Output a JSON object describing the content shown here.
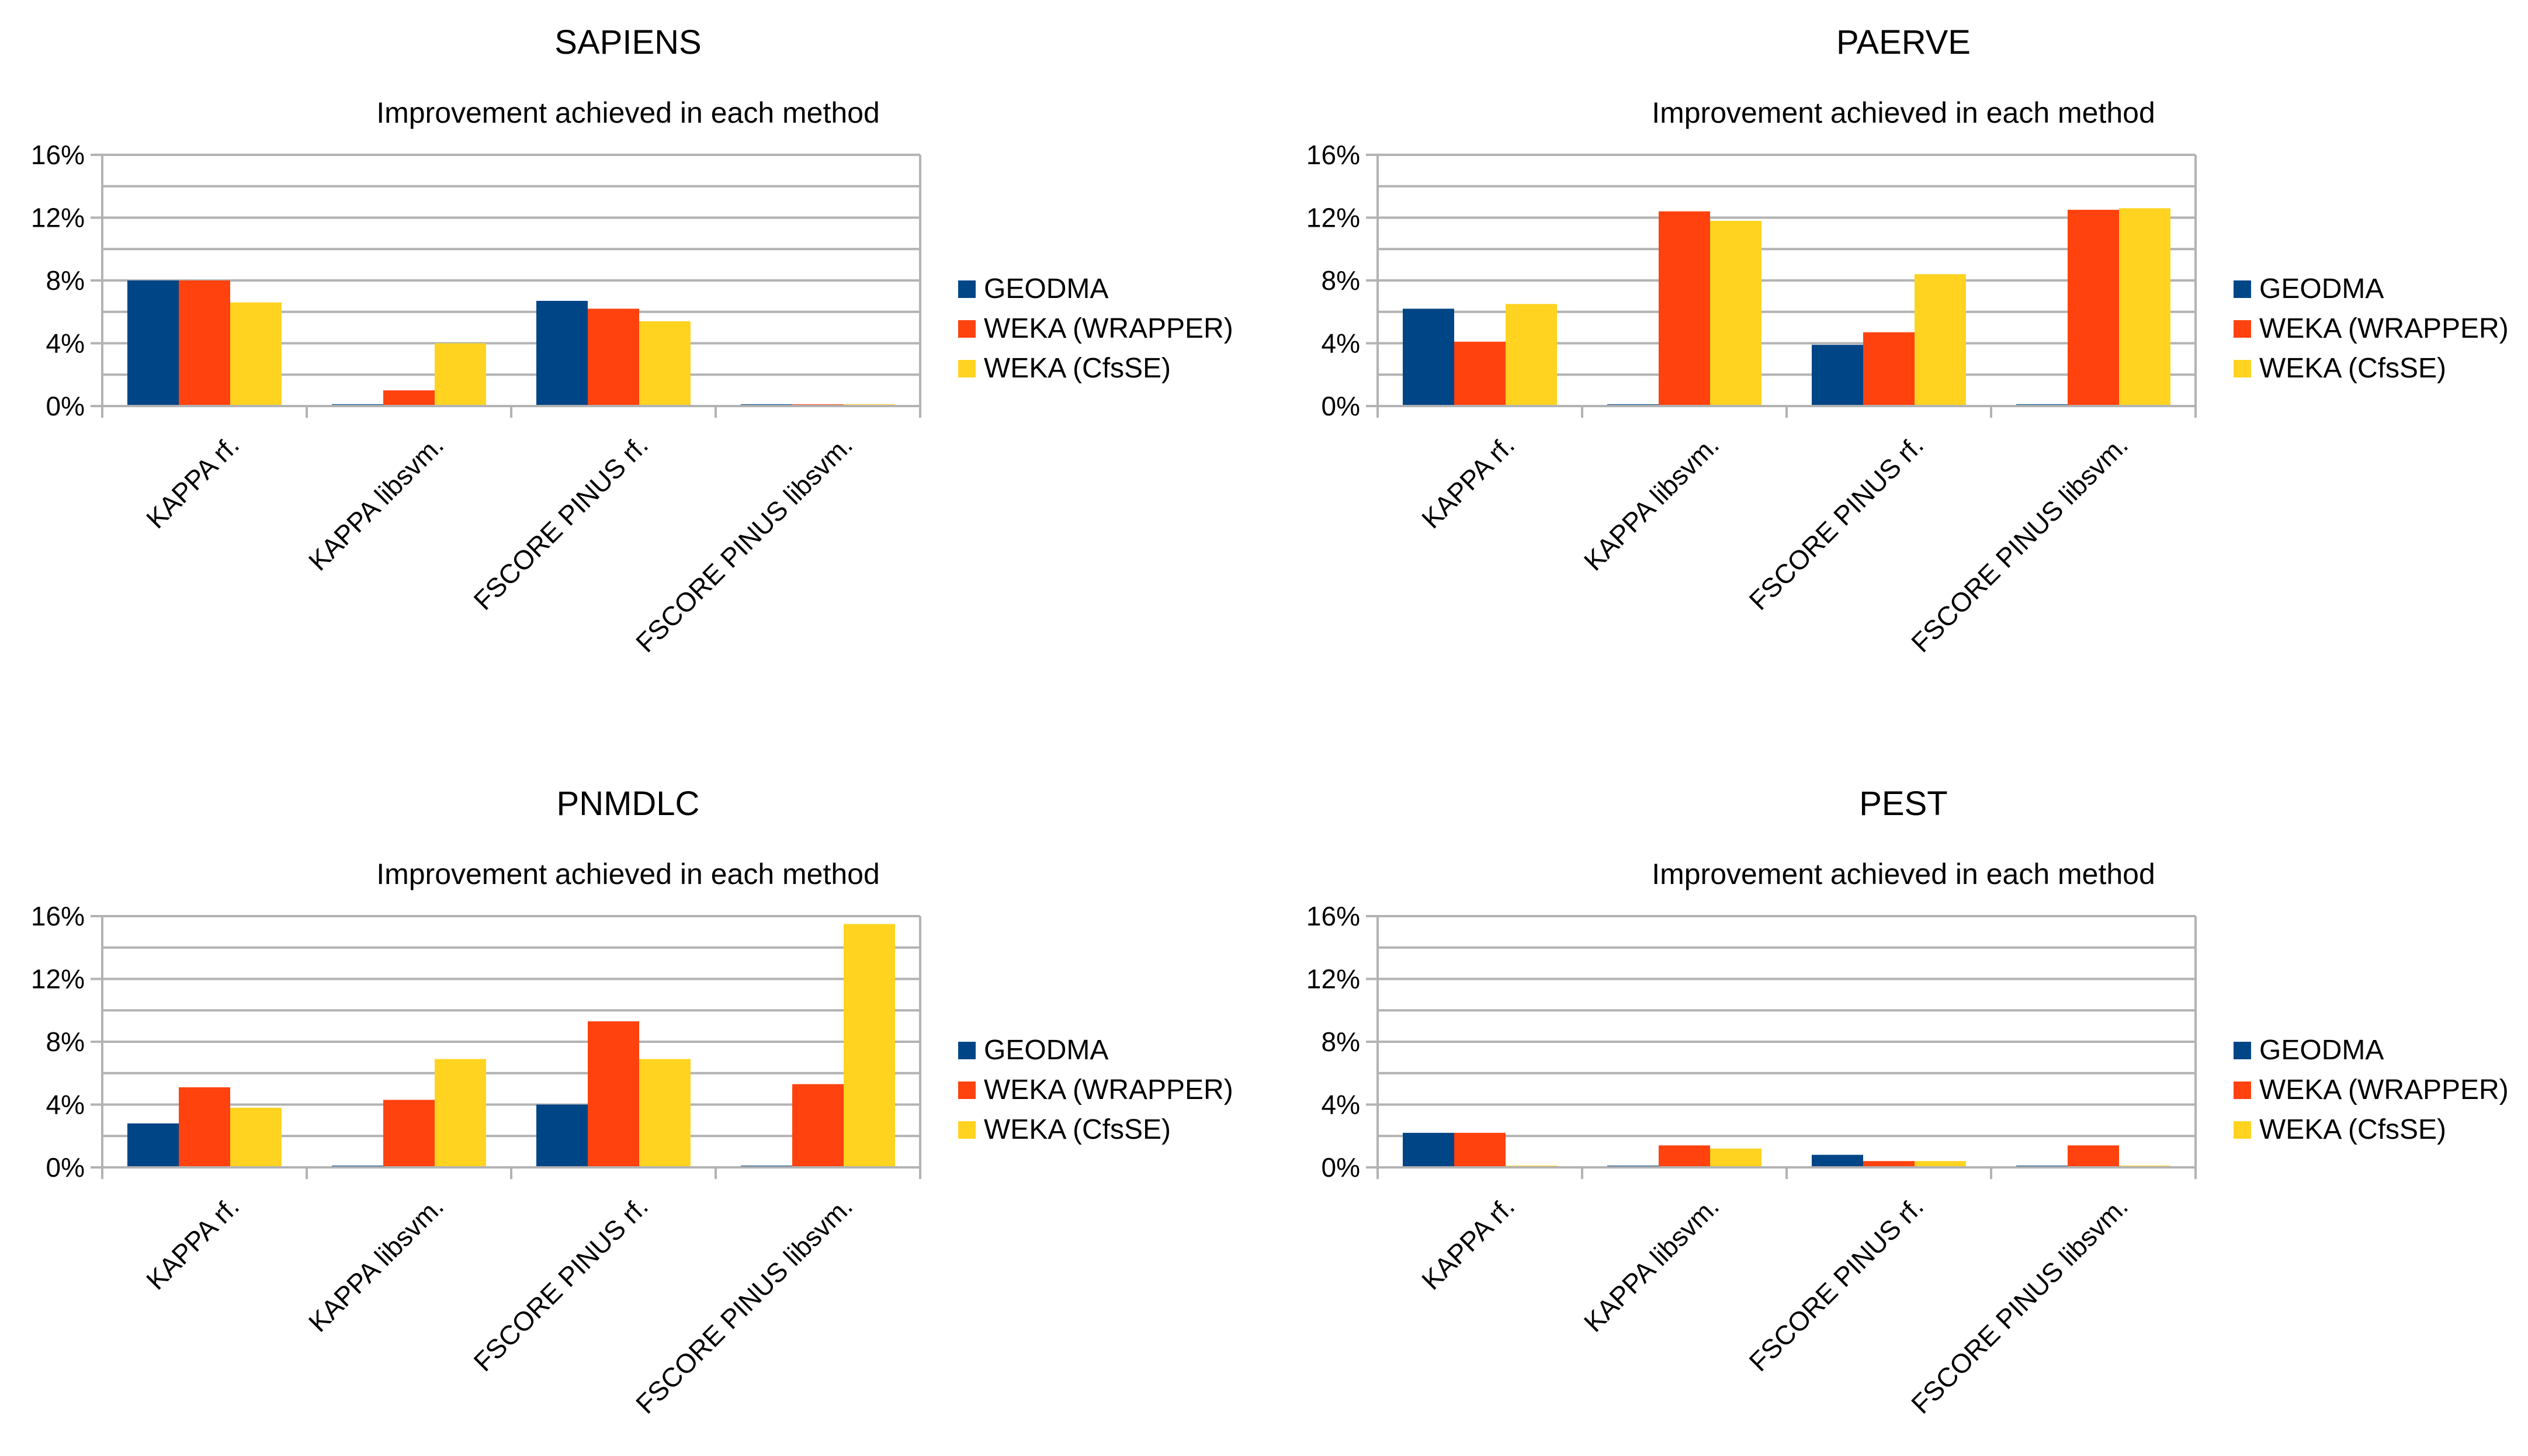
{
  "colors": {
    "GEODMA": "#004586",
    "WEKA (WRAPPER)": "#ff420e",
    "WEKA (CfsSE)": "#ffd320",
    "grid": "#b3b3b3"
  },
  "chart_data": [
    {
      "type": "bar",
      "title": "SAPIENS",
      "subtitle": "Improvement achieved in each method",
      "categories": [
        "KAPPA rf.",
        "KAPPA libsvm.",
        "FSCORE PINUS rf.",
        "FSCORE PINUS libsvm."
      ],
      "y_ticks": [
        "0%",
        "4%",
        "8%",
        "12%",
        "16%"
      ],
      "ylim": [
        0,
        16
      ],
      "grid": true,
      "legend_position": "right",
      "series": [
        {
          "name": "GEODMA",
          "values": [
            8.0,
            0.1,
            6.7,
            0.1
          ]
        },
        {
          "name": "WEKA (WRAPPER)",
          "values": [
            8.0,
            1.0,
            6.2,
            0.1
          ]
        },
        {
          "name": "WEKA (CfsSE)",
          "values": [
            6.6,
            4.0,
            5.4,
            0.1
          ]
        }
      ]
    },
    {
      "type": "bar",
      "title": "PAERVE",
      "subtitle": "Improvement achieved in each method",
      "categories": [
        "KAPPA rf.",
        "KAPPA libsvm.",
        "FSCORE PINUS rf.",
        "FSCORE PINUS libsvm."
      ],
      "y_ticks": [
        "0%",
        "4%",
        "8%",
        "12%",
        "16%"
      ],
      "ylim": [
        0,
        16
      ],
      "grid": true,
      "legend_position": "right",
      "series": [
        {
          "name": "GEODMA",
          "values": [
            6.2,
            0.1,
            3.9,
            0.1
          ]
        },
        {
          "name": "WEKA (WRAPPER)",
          "values": [
            4.1,
            12.4,
            4.7,
            12.5
          ]
        },
        {
          "name": "WEKA (CfsSE)",
          "values": [
            6.5,
            11.8,
            8.4,
            12.6
          ]
        }
      ]
    },
    {
      "type": "bar",
      "title": "PNMDLC",
      "subtitle": "Improvement achieved in each method",
      "categories": [
        "KAPPA rf.",
        "KAPPA libsvm.",
        "FSCORE PINUS rf.",
        "FSCORE PINUS libsvm."
      ],
      "y_ticks": [
        "0%",
        "4%",
        "8%",
        "12%",
        "16%"
      ],
      "ylim": [
        0,
        16
      ],
      "grid": true,
      "legend_position": "right",
      "series": [
        {
          "name": "GEODMA",
          "values": [
            2.8,
            0.1,
            4.0,
            0.1
          ]
        },
        {
          "name": "WEKA (WRAPPER)",
          "values": [
            5.1,
            4.3,
            9.3,
            5.3
          ]
        },
        {
          "name": "WEKA (CfsSE)",
          "values": [
            3.8,
            6.9,
            6.9,
            15.5
          ]
        }
      ]
    },
    {
      "type": "bar",
      "title": "PEST",
      "subtitle": "Improvement achieved in each method",
      "categories": [
        "KAPPA rf.",
        "KAPPA libsvm.",
        "FSCORE PINUS rf.",
        "FSCORE PINUS libsvm."
      ],
      "y_ticks": [
        "0%",
        "4%",
        "8%",
        "12%",
        "16%"
      ],
      "ylim": [
        0,
        16
      ],
      "grid": true,
      "legend_position": "right",
      "series": [
        {
          "name": "GEODMA",
          "values": [
            2.2,
            0.1,
            0.8,
            0.1
          ]
        },
        {
          "name": "WEKA (WRAPPER)",
          "values": [
            2.2,
            1.4,
            0.4,
            1.4
          ]
        },
        {
          "name": "WEKA (CfsSE)",
          "values": [
            0.1,
            1.2,
            0.4,
            0.1
          ]
        }
      ]
    }
  ]
}
